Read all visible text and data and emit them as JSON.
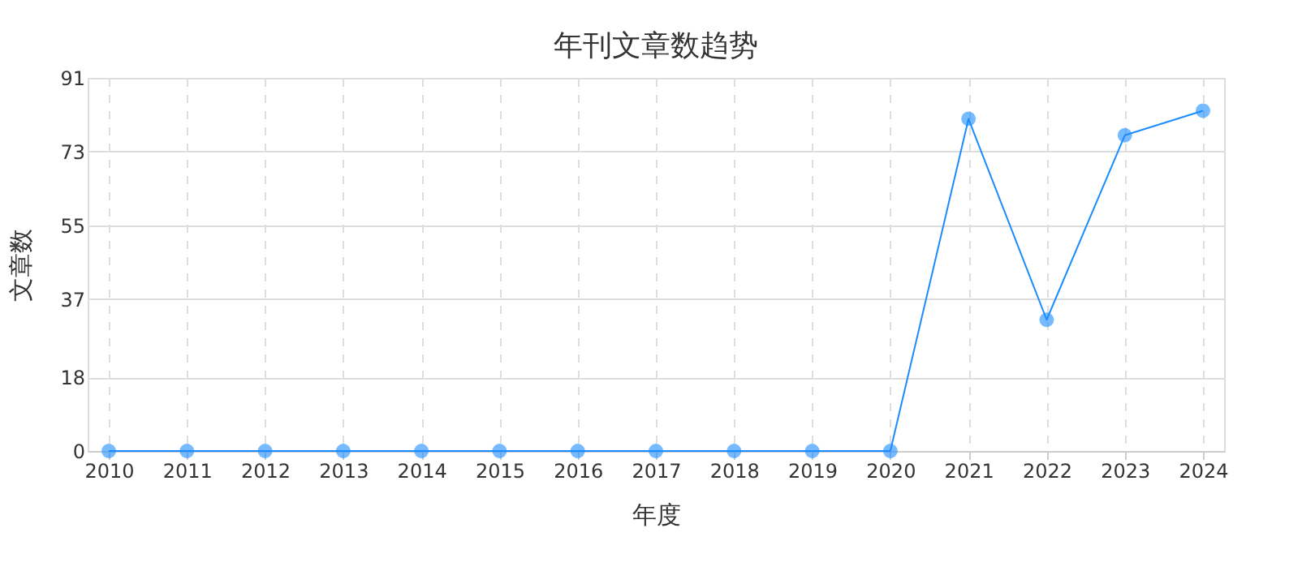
{
  "chart_data": {
    "type": "line",
    "title": "年刊文章数趋势",
    "xlabel": "年度",
    "ylabel": "文章数",
    "categories": [
      "2010",
      "2011",
      "2012",
      "2013",
      "2014",
      "2015",
      "2016",
      "2017",
      "2018",
      "2019",
      "2020",
      "2021",
      "2022",
      "2023",
      "2024"
    ],
    "series": [
      {
        "color": "#1a8cff",
        "values": [
          0,
          0,
          0,
          0,
          0,
          0,
          0,
          0,
          0,
          0,
          0,
          81,
          32,
          77,
          83
        ]
      }
    ],
    "ylim": [
      0,
      91
    ],
    "yticks": [
      0,
      18,
      37,
      55,
      73,
      91
    ],
    "grid": true,
    "marker": "circle",
    "line_style": "solid"
  }
}
